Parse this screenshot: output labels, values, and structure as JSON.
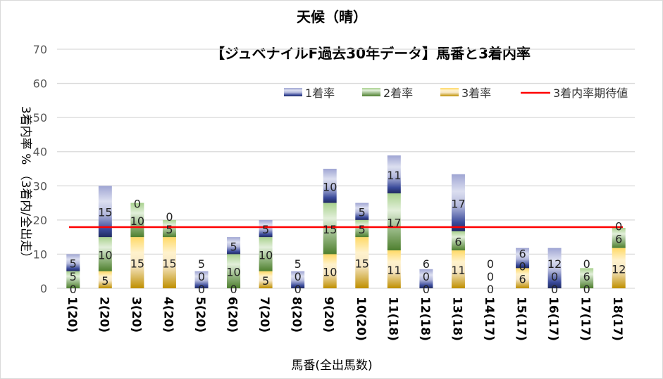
{
  "chart_data": {
    "type": "bar",
    "stacked": true,
    "title": "天候（晴）",
    "subtitle": "【ジュベナイルF過去30年データ】馬番と3着内率",
    "xlabel": "馬番(全出馬数)",
    "ylabel": "3着内率 %  （3着内/全出走）",
    "ylim": [
      0,
      70
    ],
    "yticks": [
      0,
      10,
      20,
      30,
      40,
      50,
      60,
      70
    ],
    "grid": true,
    "legend_position": "top-right",
    "categories": [
      "1(20)",
      "2(20)",
      "3(20)",
      "4(20)",
      "5(20)",
      "6(20)",
      "7(20)",
      "8(20)",
      "9(20)",
      "10(20)",
      "11(18)",
      "12(18)",
      "13(18)",
      "14(17)",
      "15(17)",
      "16(17)",
      "17(17)",
      "18(17)"
    ],
    "series": [
      {
        "name": "3着率",
        "color": "#c9961a",
        "values": [
          0,
          5,
          15,
          15,
          0,
          0,
          5,
          0,
          10,
          15,
          11.1,
          0,
          11.1,
          0,
          5.9,
          0,
          0,
          11.8
        ],
        "labels": [
          "0",
          "5",
          "15",
          "15",
          "0",
          "0",
          "5",
          "0",
          "10",
          "15",
          "11",
          "0",
          "11",
          "0",
          "6",
          "0",
          "0",
          "12"
        ]
      },
      {
        "name": "2着率",
        "color": "#548235",
        "values": [
          5,
          10,
          10,
          5,
          0,
          10,
          10,
          0,
          15,
          5,
          16.7,
          0,
          5.6,
          0,
          0,
          0,
          5.9,
          5.9
        ],
        "labels": [
          "5",
          "10",
          "10",
          "5",
          "0",
          "10",
          "10",
          "0",
          "15",
          "5",
          "17",
          "0",
          "6",
          "0",
          "0",
          "0",
          "6",
          "6"
        ]
      },
      {
        "name": "1着率",
        "color": "#203070",
        "values": [
          5,
          15,
          0,
          0,
          5,
          5,
          5,
          5,
          10,
          5,
          11.1,
          5.6,
          16.7,
          0,
          5.9,
          11.8,
          0,
          0
        ],
        "labels": [
          "5",
          "15",
          "0",
          "0",
          "5",
          "5",
          "5",
          "5",
          "10",
          "5",
          "11",
          "6",
          "17",
          "0",
          "6",
          "12",
          "0",
          "0"
        ]
      }
    ],
    "reference_line": {
      "name": "3着内率期待値",
      "value": 17.9,
      "color": "#ff0000"
    }
  }
}
